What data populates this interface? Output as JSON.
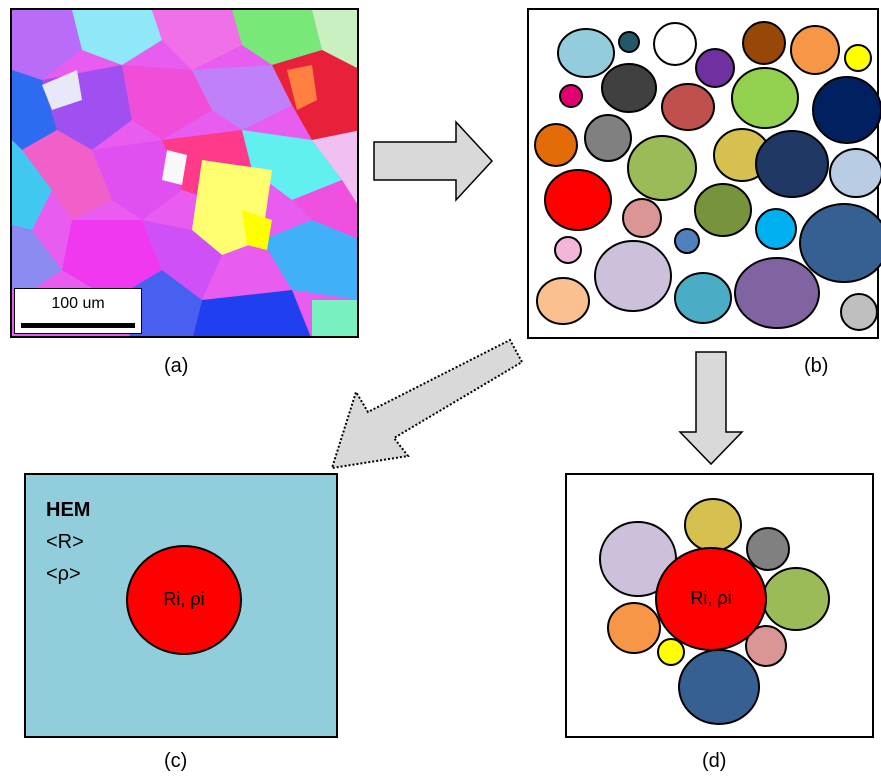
{
  "captions": {
    "a": "(a)",
    "b": "(b)",
    "c": "(c)",
    "d": "(d)"
  },
  "panel_a": {
    "scale_bar_label": "100 um"
  },
  "panel_c": {
    "title": "HEM",
    "avg_radius": "<R>",
    "avg_density": "<ρ>",
    "center_label": "Ri, ρi"
  },
  "panel_d": {
    "center_label": "Ri, ρi"
  },
  "colors": {
    "matrix": "#92CDDC",
    "center": "#FF0000",
    "arrow_fill": "#D9D9D9"
  }
}
